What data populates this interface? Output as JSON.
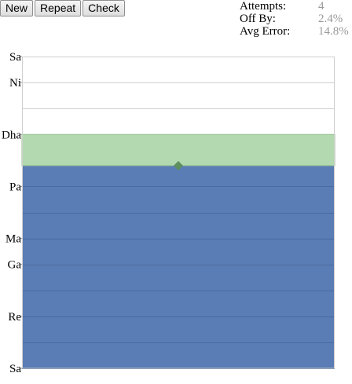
{
  "toolbar": {
    "new_label": "New",
    "repeat_label": "Repeat",
    "check_label": "Check"
  },
  "stats": {
    "attempts_label": "Attempts:",
    "attempts_value": "4",
    "off_by_label": "Off By:",
    "off_by_value": "2.4%",
    "avg_error_label": "Avg Error:",
    "avg_error_value": "14.8%"
  },
  "colors": {
    "user_fill": "#5a7db5",
    "target_band": "#b3d9b0",
    "marker": "#5e8f5e",
    "gridline": "#cfcfcf"
  },
  "chart_data": {
    "type": "bar",
    "scale": "semitones",
    "ylim": [
      0,
      12
    ],
    "ticks": [
      {
        "label": "Sa",
        "value": 0
      },
      {
        "label": "Re",
        "value": 2
      },
      {
        "label": "Ga",
        "value": 4
      },
      {
        "label": "Ma",
        "value": 5
      },
      {
        "label": "Pa",
        "value": 7
      },
      {
        "label": "Dha",
        "value": 9
      },
      {
        "label": "Ni",
        "value": 11
      },
      {
        "label": "Sa",
        "value": 12
      }
    ],
    "gridlines": [
      0,
      1,
      2,
      3,
      4,
      5,
      6,
      7,
      8,
      9,
      10,
      11,
      12
    ],
    "user_value": 7.8,
    "target_range": [
      7.8,
      9
    ]
  }
}
